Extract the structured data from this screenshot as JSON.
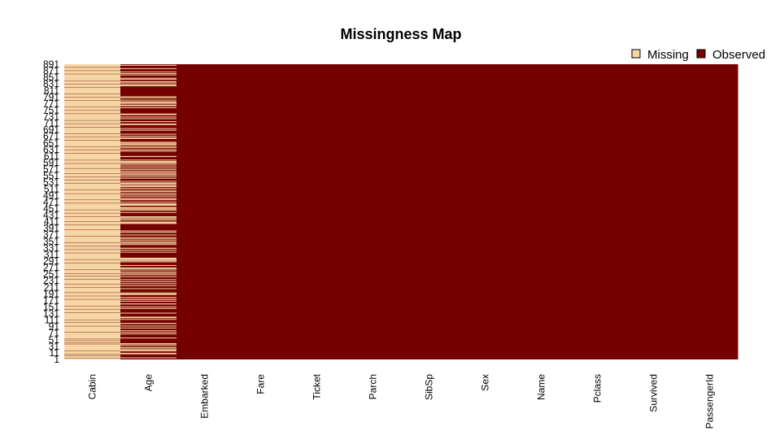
{
  "chart_data": {
    "type": "heatmap",
    "title": "Missingness Map",
    "xlabel": "",
    "ylabel": "",
    "columns": [
      "Cabin",
      "Age",
      "Embarked",
      "Fare",
      "Ticket",
      "Parch",
      "SibSp",
      "Sex",
      "Name",
      "Pclass",
      "Survived",
      "PassengerId"
    ],
    "ytick_labels": [
      "891",
      "871",
      "851",
      "831",
      "811",
      "791",
      "771",
      "751",
      "731",
      "711",
      "691",
      "671",
      "651",
      "631",
      "611",
      "591",
      "571",
      "551",
      "531",
      "511",
      "491",
      "471",
      "451",
      "431",
      "411",
      "391",
      "371",
      "351",
      "331",
      "311",
      "291",
      "271",
      "251",
      "231",
      "211",
      "191",
      "171",
      "151",
      "131",
      "111",
      "91",
      "71",
      "51",
      "31",
      "11",
      "1"
    ],
    "row_count": 891,
    "legend": [
      {
        "label": "Missing",
        "color": "#f5d6a4"
      },
      {
        "label": "Observed",
        "color": "#750000"
      }
    ],
    "legend_position": "top-right",
    "missing_rows": {
      "Cabin": [
        [
          0,
          3
        ],
        [
          5,
          10
        ],
        [
          12,
          14
        ],
        [
          16,
          24
        ],
        [
          26,
          45
        ],
        [
          47,
          49
        ],
        [
          51,
          55
        ],
        [
          57,
          60
        ],
        [
          62,
          80
        ],
        [
          82,
          99
        ],
        [
          101,
          110
        ],
        [
          112,
          118
        ],
        [
          120,
          140
        ],
        [
          142,
          150
        ],
        [
          152,
          160
        ],
        [
          162,
          180
        ],
        [
          182,
          190
        ],
        [
          192,
          200
        ],
        [
          202,
          215
        ],
        [
          217,
          225
        ],
        [
          227,
          240
        ],
        [
          242,
          250
        ],
        [
          252,
          258
        ],
        [
          260,
          270
        ],
        [
          272,
          290
        ],
        [
          292,
          300
        ],
        [
          302,
          320
        ],
        [
          322,
          330
        ],
        [
          332,
          340
        ],
        [
          342,
          350
        ],
        [
          352,
          370
        ],
        [
          372,
          390
        ],
        [
          392,
          405
        ],
        [
          407,
          415
        ],
        [
          417,
          430
        ],
        [
          432,
          440
        ],
        [
          442,
          450
        ],
        [
          452,
          470
        ],
        [
          472,
          480
        ],
        [
          482,
          499
        ],
        [
          501,
          510
        ],
        [
          512,
          530
        ],
        [
          532,
          540
        ],
        [
          542,
          550
        ],
        [
          552,
          560
        ],
        [
          562,
          575
        ],
        [
          577,
          590
        ],
        [
          592,
          600
        ],
        [
          602,
          620
        ],
        [
          622,
          630
        ],
        [
          632,
          640
        ],
        [
          642,
          660
        ],
        [
          662,
          670
        ],
        [
          672,
          680
        ],
        [
          682,
          700
        ],
        [
          702,
          710
        ],
        [
          712,
          720
        ],
        [
          722,
          740
        ],
        [
          742,
          750
        ],
        [
          752,
          760
        ],
        [
          762,
          780
        ],
        [
          782,
          790
        ],
        [
          792,
          800
        ],
        [
          802,
          820
        ],
        [
          822,
          830
        ],
        [
          832,
          840
        ],
        [
          842,
          860
        ],
        [
          862,
          870
        ],
        [
          872,
          880
        ],
        [
          882,
          890
        ]
      ],
      "Age": [
        [
          5,
          5
        ],
        [
          17,
          17
        ],
        [
          19,
          19
        ],
        [
          26,
          26
        ],
        [
          28,
          29
        ],
        [
          31,
          32
        ],
        [
          36,
          36
        ],
        [
          42,
          42
        ],
        [
          45,
          48
        ],
        [
          64,
          65
        ],
        [
          76,
          77
        ],
        [
          82,
          82
        ],
        [
          87,
          87
        ],
        [
          95,
          95
        ],
        [
          101,
          101
        ],
        [
          107,
          109
        ],
        [
          121,
          121
        ],
        [
          126,
          126
        ],
        [
          128,
          128
        ],
        [
          140,
          140
        ],
        [
          154,
          154
        ],
        [
          158,
          159
        ],
        [
          166,
          168
        ],
        [
          176,
          176
        ],
        [
          180,
          181
        ],
        [
          185,
          187
        ],
        [
          196,
          196
        ],
        [
          198,
          198
        ],
        [
          201,
          201
        ],
        [
          214,
          214
        ],
        [
          223,
          223
        ],
        [
          229,
          229
        ],
        [
          235,
          235
        ],
        [
          240,
          241
        ],
        [
          250,
          250
        ],
        [
          256,
          256
        ],
        [
          260,
          260
        ],
        [
          264,
          264
        ],
        [
          270,
          270
        ],
        [
          274,
          274
        ],
        [
          277,
          277
        ],
        [
          284,
          284
        ],
        [
          295,
          295
        ],
        [
          298,
          298
        ],
        [
          300,
          304
        ],
        [
          306,
          306
        ],
        [
          324,
          324
        ],
        [
          330,
          330
        ],
        [
          334,
          336
        ],
        [
          347,
          347
        ],
        [
          351,
          351
        ],
        [
          354,
          354
        ],
        [
          358,
          359
        ],
        [
          364,
          364
        ],
        [
          367,
          368
        ],
        [
          375,
          376
        ],
        [
          384,
          384
        ],
        [
          388,
          388
        ],
        [
          409,
          411
        ],
        [
          413,
          413
        ],
        [
          415,
          415
        ],
        [
          420,
          421
        ],
        [
          425,
          425
        ],
        [
          428,
          428
        ],
        [
          431,
          431
        ],
        [
          444,
          444
        ],
        [
          451,
          451
        ],
        [
          454,
          454
        ],
        [
          457,
          457
        ],
        [
          459,
          459
        ],
        [
          464,
          468
        ],
        [
          470,
          470
        ],
        [
          475,
          475
        ],
        [
          481,
          482
        ],
        [
          485,
          485
        ],
        [
          490,
          491
        ],
        [
          495,
          497
        ],
        [
          502,
          502
        ],
        [
          507,
          507
        ],
        [
          511,
          511
        ],
        [
          517,
          517
        ],
        [
          522,
          522
        ],
        [
          524,
          524
        ],
        [
          527,
          528
        ],
        [
          531,
          531
        ],
        [
          533,
          533
        ],
        [
          538,
          538
        ],
        [
          547,
          547
        ],
        [
          552,
          552
        ],
        [
          557,
          557
        ],
        [
          560,
          560
        ],
        [
          563,
          564
        ],
        [
          568,
          568
        ],
        [
          573,
          573
        ],
        [
          578,
          578
        ],
        [
          584,
          584
        ],
        [
          589,
          589
        ],
        [
          593,
          593
        ],
        [
          596,
          596
        ],
        [
          598,
          598
        ],
        [
          601,
          602
        ],
        [
          611,
          613
        ],
        [
          629,
          629
        ],
        [
          633,
          633
        ],
        [
          639,
          639
        ],
        [
          643,
          643
        ],
        [
          648,
          648
        ],
        [
          650,
          650
        ],
        [
          653,
          653
        ],
        [
          656,
          656
        ],
        [
          667,
          667
        ],
        [
          669,
          669
        ],
        [
          674,
          674
        ],
        [
          680,
          680
        ],
        [
          692,
          692
        ],
        [
          697,
          697
        ],
        [
          709,
          709
        ],
        [
          711,
          711
        ],
        [
          718,
          718
        ],
        [
          727,
          727
        ],
        [
          732,
          732
        ],
        [
          738,
          739
        ],
        [
          740,
          741
        ],
        [
          760,
          760
        ],
        [
          766,
          766
        ],
        [
          768,
          768
        ],
        [
          773,
          773
        ],
        [
          776,
          776
        ],
        [
          778,
          778
        ],
        [
          783,
          783
        ],
        [
          790,
          790
        ],
        [
          792,
          793
        ],
        [
          825,
          826
        ],
        [
          828,
          828
        ],
        [
          832,
          832
        ],
        [
          837,
          837
        ],
        [
          839,
          839
        ],
        [
          846,
          846
        ],
        [
          849,
          849
        ],
        [
          859,
          859
        ],
        [
          863,
          863
        ],
        [
          868,
          868
        ],
        [
          878,
          878
        ],
        [
          888,
          888
        ]
      ]
    }
  }
}
